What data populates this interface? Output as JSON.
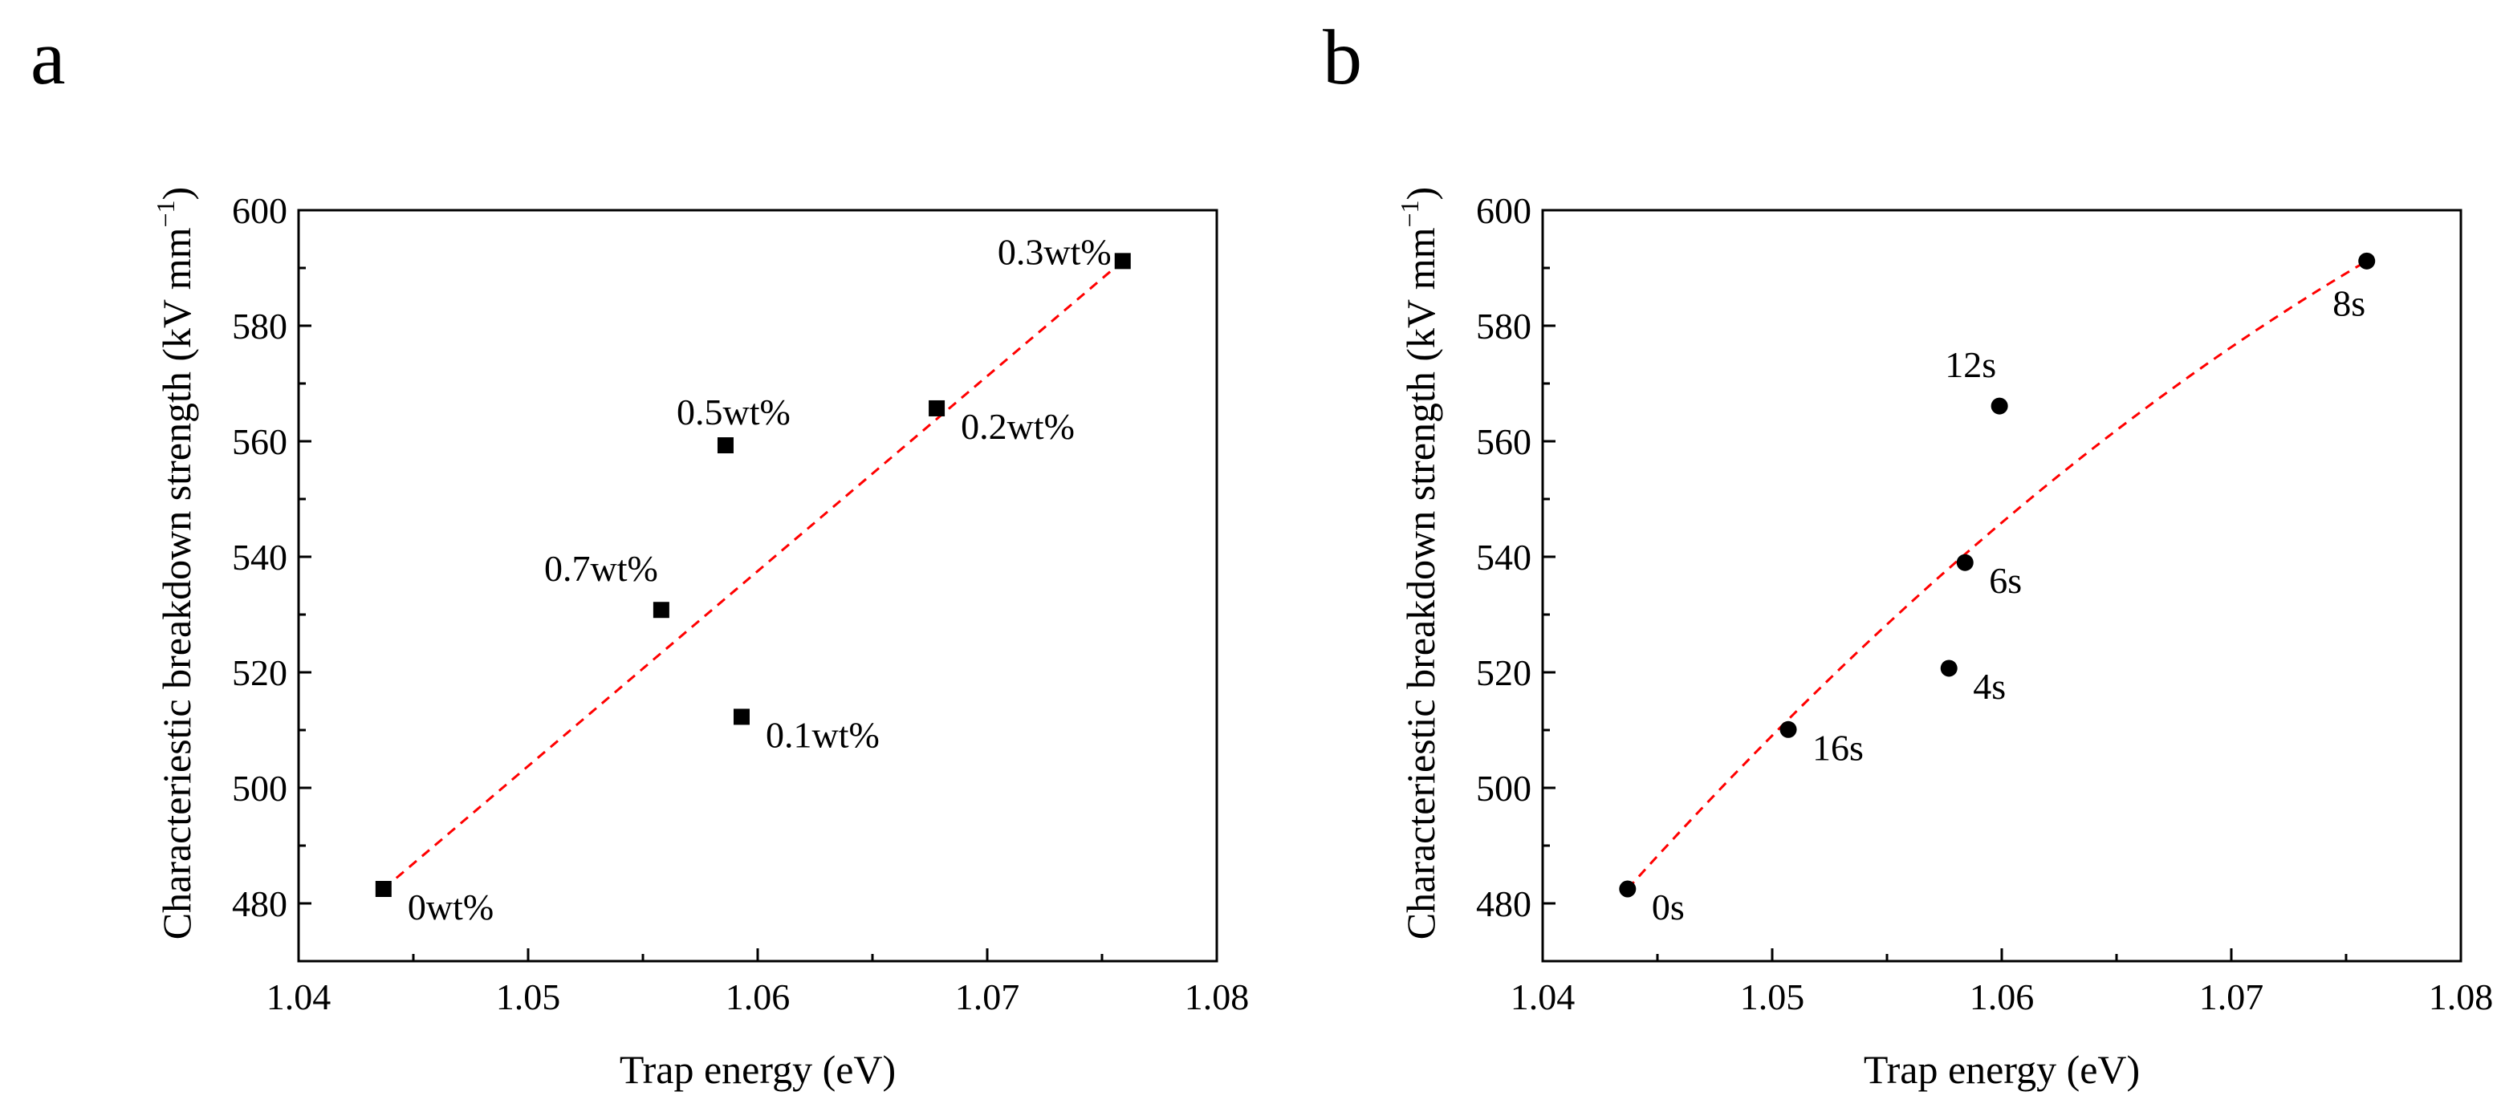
{
  "panels": [
    {
      "label": "a"
    },
    {
      "label": "b"
    }
  ],
  "chart_data": [
    {
      "type": "scatter",
      "panel": "a",
      "xlabel": "Trap energy (eV)",
      "ylabel": "Characteriestic breakdown strength (kV mm",
      "ylabel_sup": "−1",
      "ylabel_end": ")",
      "xlim": [
        1.04,
        1.08
      ],
      "ylim": [
        470,
        600
      ],
      "xticks": [
        "1.04",
        "1.05",
        "1.06",
        "1.07",
        "1.08"
      ],
      "yticks": [
        "480",
        "500",
        "520",
        "540",
        "560",
        "580",
        "600"
      ],
      "marker": "square",
      "marker_color": "#000000",
      "fit_color": "#ff0000",
      "fit_style": "dashed",
      "points": [
        {
          "x": 1.0437,
          "y": 482.5,
          "label": "0wt%",
          "label_pos": "lower-right"
        },
        {
          "x": 1.0593,
          "y": 512.3,
          "label": "0.1wt%",
          "label_pos": "lower-right"
        },
        {
          "x": 1.0678,
          "y": 565.7,
          "label": "0.2wt%",
          "label_pos": "lower-right"
        },
        {
          "x": 1.0759,
          "y": 591.2,
          "label": "0.3wt%",
          "label_pos": "left"
        },
        {
          "x": 1.0586,
          "y": 559.3,
          "label": "0.5wt%",
          "label_pos": "above"
        },
        {
          "x": 1.0558,
          "y": 530.8,
          "label": "0.7wt%",
          "label_pos": "upper-left"
        }
      ],
      "fit": {
        "x": [
          1.0437,
          1.0759
        ],
        "y": [
          482.5,
          591.2
        ]
      }
    },
    {
      "type": "scatter",
      "panel": "b",
      "xlabel": "Trap energy (eV)",
      "ylabel": "Characteriestic breakdown strength (kV mm",
      "ylabel_sup": "−1",
      "ylabel_end": ")",
      "xlim": [
        1.04,
        1.08
      ],
      "ylim": [
        470,
        600
      ],
      "xticks": [
        "1.04",
        "1.05",
        "1.06",
        "1.07",
        "1.08"
      ],
      "yticks": [
        "480",
        "500",
        "520",
        "540",
        "560",
        "580",
        "600"
      ],
      "marker": "circle",
      "marker_color": "#000000",
      "fit_color": "#ff0000",
      "fit_style": "dashed",
      "points": [
        {
          "x": 1.0437,
          "y": 482.5,
          "label": "0s",
          "label_pos": "lower-right"
        },
        {
          "x": 1.0577,
          "y": 520.7,
          "label": "4s",
          "label_pos": "lower-right"
        },
        {
          "x": 1.0584,
          "y": 539.0,
          "label": "6s",
          "label_pos": "lower-right"
        },
        {
          "x": 1.0759,
          "y": 591.2,
          "label": "8s",
          "label_pos": "below"
        },
        {
          "x": 1.0599,
          "y": 566.1,
          "label": "12s",
          "label_pos": "upper-left"
        },
        {
          "x": 1.0507,
          "y": 510.1,
          "label": "16s",
          "label_pos": "lower-right"
        }
      ],
      "fit": {
        "quadratic": [
          1.0437,
          482.5,
          1.0759,
          591.2,
          1.0585,
          540.8
        ]
      }
    }
  ]
}
